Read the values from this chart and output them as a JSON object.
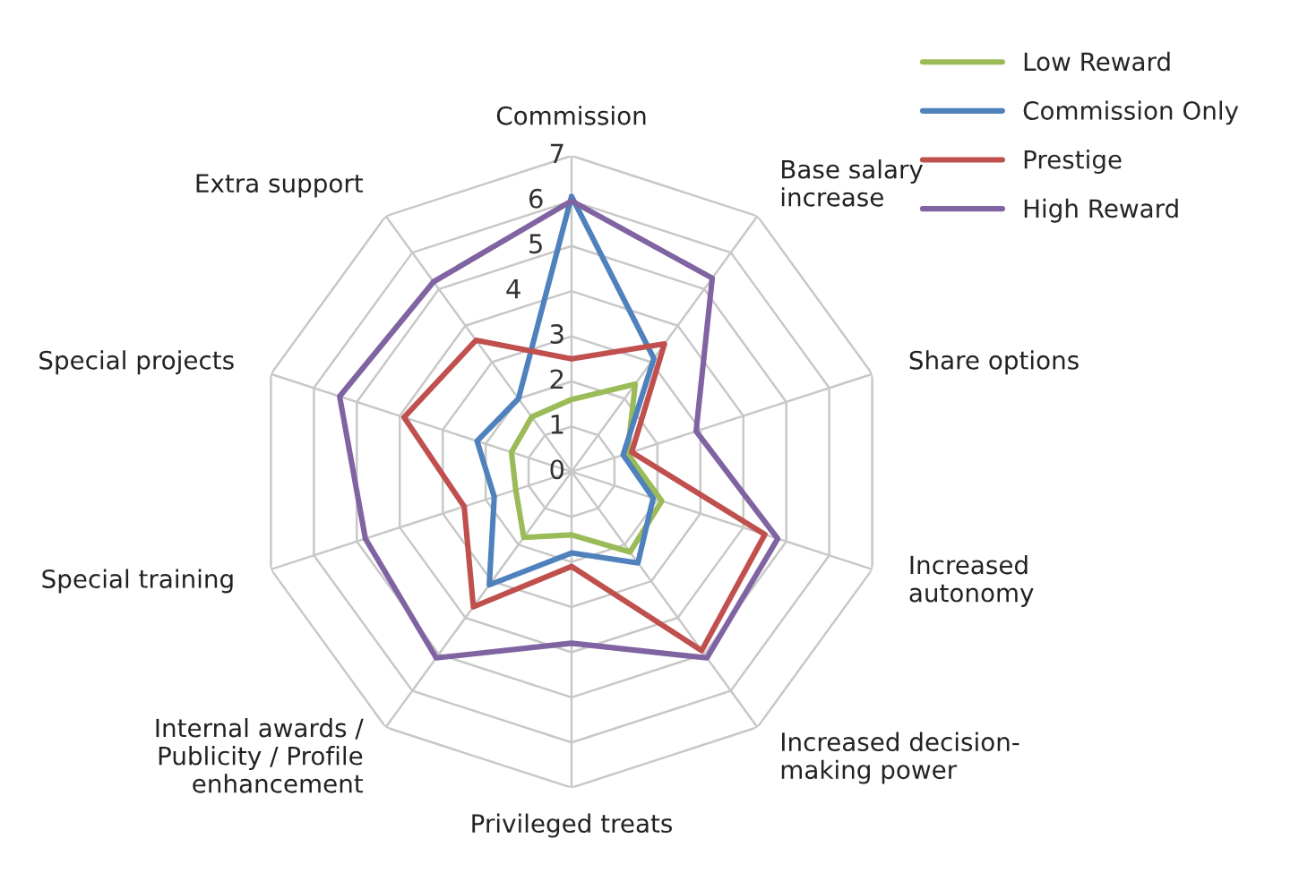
{
  "chart_data": {
    "type": "radar",
    "categories": [
      "Commission",
      "Base salary\nincrease",
      "Share options",
      "Increased\nautonomy",
      "Increased decision-\nmaking power",
      "Privileged treats",
      "Internal awards /\nPublicity / Profile\nenhancement",
      "Special training",
      "Special projects",
      "Extra support"
    ],
    "series": [
      {
        "name": "Low Reward",
        "color": "#9bbb59",
        "values": [
          1.6,
          2.4,
          1.3,
          2.1,
          2.2,
          1.4,
          1.8,
          1.3,
          1.4,
          1.5
        ]
      },
      {
        "name": "Commission Only",
        "color": "#4f81bd",
        "values": [
          6.1,
          3.1,
          1.2,
          1.9,
          2.5,
          1.8,
          3.1,
          1.8,
          2.2,
          2.0
        ]
      },
      {
        "name": "Prestige",
        "color": "#c0504d",
        "values": [
          2.5,
          3.5,
          1.4,
          4.5,
          4.9,
          2.1,
          3.7,
          2.5,
          3.9,
          3.6
        ]
      },
      {
        "name": "High Reward",
        "color": "#8064a2",
        "values": [
          6.0,
          5.3,
          2.9,
          4.8,
          5.1,
          3.8,
          5.1,
          4.8,
          5.4,
          5.2
        ]
      }
    ],
    "ylim": [
      0,
      7
    ],
    "yticks": [
      0,
      1,
      2,
      3,
      4,
      5,
      6,
      7
    ],
    "grid": true,
    "legend": "top right",
    "marker": "none",
    "line_style": "solid"
  }
}
